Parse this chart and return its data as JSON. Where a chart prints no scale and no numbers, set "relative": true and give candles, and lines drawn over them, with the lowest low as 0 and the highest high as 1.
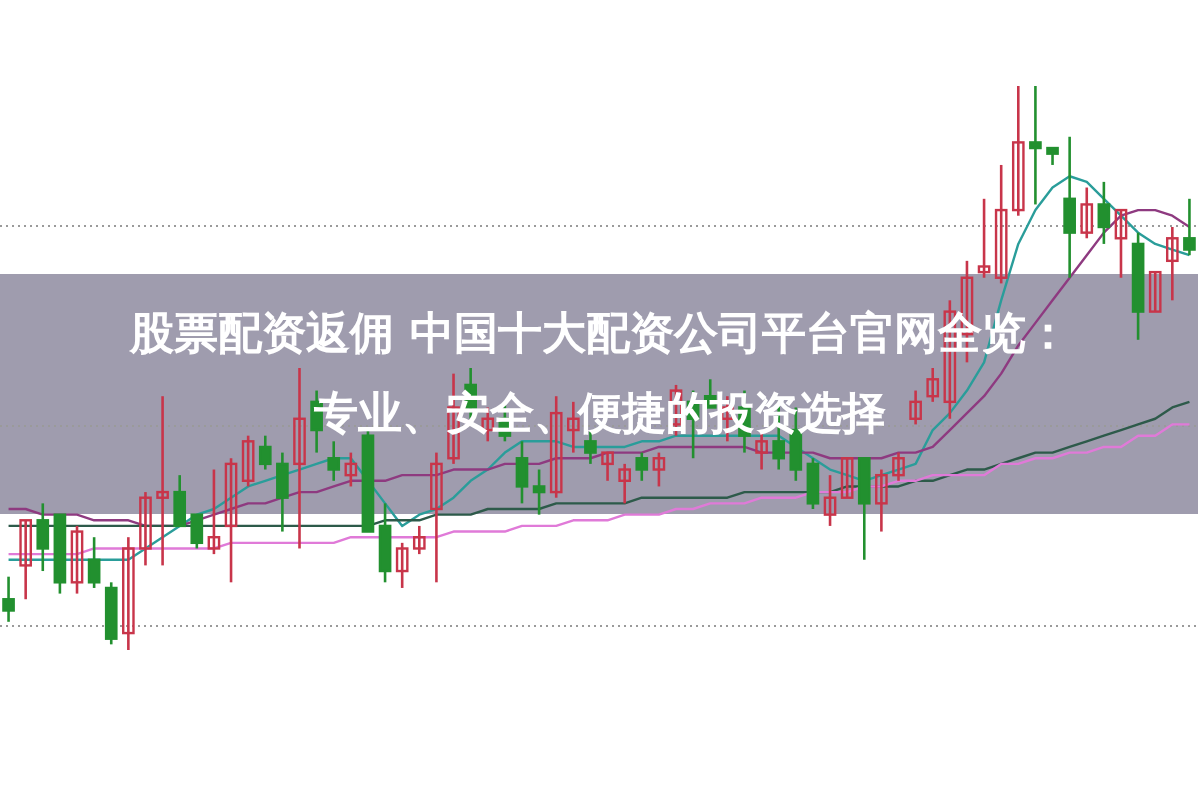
{
  "chart_data": {
    "type": "candlestick",
    "title": "股票配资返佣 中国十大配资公司平台官网全览：专业、安全、便捷的投资选择",
    "relative": true,
    "grid": "y",
    "categories": [
      null,
      null,
      null,
      null,
      null,
      null,
      null,
      null,
      null,
      null,
      null,
      null,
      null,
      null,
      null,
      null,
      null,
      null,
      null,
      null,
      null,
      null,
      null,
      null,
      null,
      null,
      null,
      null,
      null,
      null,
      null,
      null,
      null,
      null,
      null,
      null,
      null,
      null,
      null,
      null,
      null,
      null,
      null,
      null,
      null,
      null,
      null,
      null,
      null,
      null,
      null,
      null,
      null,
      null,
      null,
      null,
      null,
      null,
      null,
      null,
      null,
      null,
      null,
      null,
      null,
      null,
      null,
      null,
      null,
      null
    ],
    "ohlc": [
      [
        0.09,
        0.13,
        0.05,
        0.07
      ],
      [
        0.15,
        0.23,
        0.09,
        0.23
      ],
      [
        0.23,
        0.26,
        0.14,
        0.18
      ],
      [
        0.24,
        0.24,
        0.1,
        0.12
      ],
      [
        0.12,
        0.22,
        0.1,
        0.21
      ],
      [
        0.16,
        0.2,
        0.11,
        0.12
      ],
      [
        0.11,
        0.12,
        0.01,
        0.02
      ],
      [
        0.03,
        0.2,
        0,
        0.18
      ],
      [
        0.18,
        0.28,
        0.15,
        0.27
      ],
      [
        0.27,
        0.45,
        0.15,
        0.28
      ],
      [
        0.28,
        0.31,
        0.22,
        0.22
      ],
      [
        0.24,
        0.24,
        0.18,
        0.19
      ],
      [
        0.18,
        0.32,
        0.17,
        0.2
      ],
      [
        0.22,
        0.34,
        0.12,
        0.33
      ],
      [
        0.3,
        0.38,
        0.29,
        0.37
      ],
      [
        0.36,
        0.38,
        0.32,
        0.33
      ],
      [
        0.33,
        0.35,
        0.21,
        0.27
      ],
      [
        0.33,
        0.5,
        0.18,
        0.41
      ],
      [
        0.44,
        0.46,
        0.35,
        0.39
      ],
      [
        0.34,
        0.37,
        0.3,
        0.32
      ],
      [
        0.31,
        0.35,
        0.29,
        0.33
      ],
      [
        0.38,
        0.39,
        0.21,
        0.21
      ],
      [
        0.22,
        0.26,
        0.12,
        0.14
      ],
      [
        0.14,
        0.19,
        0.11,
        0.18
      ],
      [
        0.18,
        0.22,
        0.17,
        0.2
      ],
      [
        0.25,
        0.35,
        0.12,
        0.33
      ],
      [
        0.34,
        0.49,
        0.33,
        0.43
      ],
      [
        0.47,
        0.5,
        0.41,
        0.43
      ],
      [
        0.39,
        0.43,
        0.37,
        0.41
      ],
      [
        0.41,
        0.44,
        0.37,
        0.38
      ],
      [
        0.34,
        0.37,
        0.26,
        0.29
      ],
      [
        0.29,
        0.32,
        0.24,
        0.28
      ],
      [
        0.28,
        0.45,
        0.27,
        0.42
      ],
      [
        0.39,
        0.44,
        0.35,
        0.41
      ],
      [
        0.37,
        0.39,
        0.33,
        0.35
      ],
      [
        0.33,
        0.35,
        0.3,
        0.35
      ],
      [
        0.3,
        0.33,
        0.26,
        0.32
      ],
      [
        0.34,
        0.35,
        0.3,
        0.32
      ],
      [
        0.32,
        0.35,
        0.29,
        0.34
      ],
      [
        0.4,
        0.47,
        0.38,
        0.46
      ],
      [
        0.44,
        0.46,
        0.34,
        0.41
      ],
      [
        0.45,
        0.48,
        0.43,
        0.43
      ],
      [
        0.41,
        0.45,
        0.37,
        0.43
      ],
      [
        0.43,
        0.46,
        0.35,
        0.38
      ],
      [
        0.35,
        0.39,
        0.32,
        0.37
      ],
      [
        0.37,
        0.44,
        0.32,
        0.34
      ],
      [
        0.39,
        0.43,
        0.3,
        0.32
      ],
      [
        0.33,
        0.34,
        0.25,
        0.26
      ],
      [
        0.24,
        0.31,
        0.22,
        0.27
      ],
      [
        0.27,
        0.34,
        0.27,
        0.34
      ],
      [
        0.34,
        0.34,
        0.16,
        0.26
      ],
      [
        0.26,
        0.32,
        0.21,
        0.31
      ],
      [
        0.31,
        0.35,
        0.3,
        0.34
      ],
      [
        0.41,
        0.46,
        0.4,
        0.44
      ],
      [
        0.45,
        0.5,
        0.44,
        0.48
      ],
      [
        0.44,
        0.62,
        0.41,
        0.6
      ],
      [
        0.56,
        0.69,
        0.51,
        0.66
      ],
      [
        0.67,
        0.8,
        0.66,
        0.68
      ],
      [
        0.66,
        0.86,
        0.65,
        0.78
      ],
      [
        0.78,
        1,
        0.77,
        0.9
      ],
      [
        0.9,
        1,
        0.79,
        0.89
      ],
      [
        0.89,
        0.89,
        0.86,
        0.88
      ],
      [
        0.8,
        0.91,
        0.66,
        0.74
      ],
      [
        0.74,
        0.82,
        0.73,
        0.79
      ],
      [
        0.79,
        0.83,
        0.72,
        0.75
      ],
      [
        0.73,
        0.78,
        0.66,
        0.78
      ],
      [
        0.72,
        0.74,
        0.55,
        0.6
      ],
      [
        0.6,
        0.67,
        0.6,
        0.67
      ],
      [
        0.69,
        0.75,
        0.62,
        0.73
      ],
      [
        0.73,
        0.8,
        0.7,
        0.71
      ]
    ],
    "colors": [
      "#22902f",
      "#c8354a",
      "#22902f",
      "#22902f",
      "#c8354a",
      "#22902f",
      "#22902f",
      "#c8354a",
      "#c8354a",
      "#c8354a",
      "#22902f",
      "#22902f",
      "#c8354a",
      "#c8354a",
      "#c8354a",
      "#22902f",
      "#22902f",
      "#c8354a",
      "#22902f",
      "#22902f",
      "#c8354a",
      "#22902f",
      "#22902f",
      "#c8354a",
      "#c8354a",
      "#c8354a",
      "#c8354a",
      "#22902f",
      "#c8354a",
      "#22902f",
      "#22902f",
      "#22902f",
      "#c8354a",
      "#c8354a",
      "#22902f",
      "#c8354a",
      "#c8354a",
      "#22902f",
      "#c8354a",
      "#c8354a",
      "#22902f",
      "#22902f",
      "#c8354a",
      "#22902f",
      "#c8354a",
      "#22902f",
      "#22902f",
      "#22902f",
      "#c8354a",
      "#c8354a",
      "#22902f",
      "#c8354a",
      "#c8354a",
      "#c8354a",
      "#c8354a",
      "#c8354a",
      "#c8354a",
      "#c8354a",
      "#c8354a",
      "#c8354a",
      "#22902f",
      "#22902f",
      "#22902f",
      "#c8354a",
      "#22902f",
      "#c8354a",
      "#22902f",
      "#c8354a",
      "#c8354a",
      "#22902f"
    ],
    "series": [
      {
        "type": "line",
        "color": "#2a9d9a",
        "values": [
          0.16,
          0.16,
          0.16,
          0.16,
          0.16,
          0.16,
          0.16,
          0.16,
          0.18,
          0.2,
          0.22,
          0.24,
          0.25,
          0.27,
          0.29,
          0.3,
          0.31,
          0.32,
          0.33,
          0.34,
          0.34,
          0.3,
          0.26,
          0.22,
          0.24,
          0.25,
          0.27,
          0.3,
          0.32,
          0.35,
          0.37,
          0.37,
          0.37,
          0.36,
          0.36,
          0.36,
          0.36,
          0.37,
          0.37,
          0.38,
          0.38,
          0.38,
          0.38,
          0.38,
          0.38,
          0.38,
          0.36,
          0.34,
          0.32,
          0.31,
          0.3,
          0.31,
          0.32,
          0.33,
          0.39,
          0.42,
          0.46,
          0.51,
          0.62,
          0.72,
          0.78,
          0.82,
          0.84,
          0.83,
          0.8,
          0.77,
          0.74,
          0.72,
          0.71,
          0.7
        ]
      },
      {
        "type": "line",
        "color": "#8e3a80",
        "values": [
          0.25,
          0.25,
          0.24,
          0.24,
          0.24,
          0.23,
          0.23,
          0.23,
          0.22,
          0.22,
          0.22,
          0.23,
          0.24,
          0.25,
          0.26,
          0.26,
          0.27,
          0.28,
          0.28,
          0.29,
          0.3,
          0.3,
          0.3,
          0.31,
          0.31,
          0.31,
          0.32,
          0.32,
          0.32,
          0.33,
          0.33,
          0.33,
          0.34,
          0.34,
          0.34,
          0.35,
          0.35,
          0.35,
          0.36,
          0.36,
          0.36,
          0.36,
          0.36,
          0.36,
          0.35,
          0.35,
          0.35,
          0.35,
          0.34,
          0.34,
          0.34,
          0.34,
          0.35,
          0.35,
          0.36,
          0.39,
          0.42,
          0.45,
          0.49,
          0.54,
          0.58,
          0.62,
          0.66,
          0.7,
          0.74,
          0.77,
          0.78,
          0.78,
          0.77,
          0.75
        ]
      },
      {
        "type": "line",
        "color": "#2d5a4a",
        "values": [
          0.22,
          0.22,
          0.22,
          0.22,
          0.22,
          0.22,
          0.22,
          0.22,
          0.22,
          0.22,
          0.22,
          0.22,
          0.22,
          0.22,
          0.22,
          0.22,
          0.22,
          0.22,
          0.22,
          0.22,
          0.22,
          0.22,
          0.23,
          0.23,
          0.23,
          0.24,
          0.24,
          0.24,
          0.25,
          0.25,
          0.25,
          0.25,
          0.26,
          0.26,
          0.26,
          0.26,
          0.26,
          0.27,
          0.27,
          0.27,
          0.27,
          0.27,
          0.27,
          0.28,
          0.28,
          0.28,
          0.28,
          0.28,
          0.28,
          0.29,
          0.29,
          0.29,
          0.29,
          0.3,
          0.3,
          0.31,
          0.32,
          0.32,
          0.33,
          0.34,
          0.35,
          0.35,
          0.36,
          0.37,
          0.38,
          0.39,
          0.4,
          0.41,
          0.43,
          0.44
        ]
      },
      {
        "type": "line",
        "color": "#e07ad8",
        "values": [
          0.17,
          0.17,
          0.17,
          0.17,
          0.17,
          0.18,
          0.18,
          0.18,
          0.18,
          0.18,
          0.18,
          0.18,
          0.18,
          0.19,
          0.19,
          0.19,
          0.19,
          0.19,
          0.19,
          0.19,
          0.2,
          0.2,
          0.2,
          0.2,
          0.2,
          0.2,
          0.21,
          0.21,
          0.21,
          0.21,
          0.22,
          0.22,
          0.22,
          0.23,
          0.23,
          0.23,
          0.24,
          0.24,
          0.24,
          0.25,
          0.25,
          0.26,
          0.26,
          0.26,
          0.27,
          0.27,
          0.27,
          0.28,
          0.28,
          0.28,
          0.29,
          0.29,
          0.3,
          0.3,
          0.31,
          0.31,
          0.31,
          0.31,
          0.33,
          0.33,
          0.34,
          0.34,
          0.35,
          0.35,
          0.36,
          0.36,
          0.38,
          0.38,
          0.4,
          0.4
        ]
      }
    ]
  }
}
